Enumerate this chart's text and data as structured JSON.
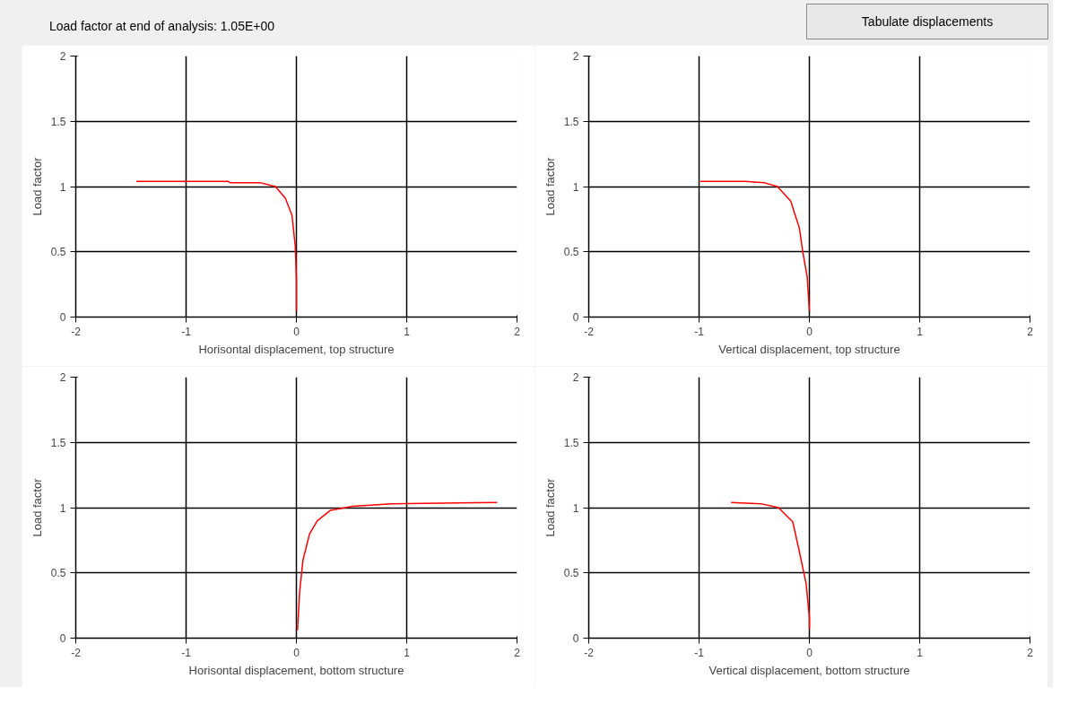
{
  "chart_data": [
    {
      "type": "line",
      "xlabel": "Horisontal displacement, top structure",
      "ylabel": "Load factor",
      "annotations": [
        "Load factor at end of analysis: 1.05E+00",
        "Tabulate displacements"
      ],
      "x": [
        -1.45,
        -0.62,
        -0.6,
        -0.33,
        -0.19,
        -0.1,
        -0.04,
        -0.01,
        0,
        0
      ],
      "series": [
        {
          "color": "#ff0000",
          "values": [
            1.04,
            1.04,
            1.03,
            1.03,
            1.0,
            0.91,
            0.78,
            0.54,
            0.3,
            0.05
          ]
        }
      ],
      "xlim": [
        -2,
        2
      ],
      "ylim": [
        0,
        2
      ],
      "xticks": [
        -2,
        -1,
        0,
        1,
        2
      ],
      "yticks": [
        0,
        0.5,
        1,
        1.5,
        2
      ],
      "grid": true,
      "line_style": "solid"
    },
    {
      "type": "line",
      "xlabel": "Vertical displacement, top structure",
      "ylabel": "Load factor",
      "x": [
        -0.99,
        -0.58,
        -0.41,
        -0.29,
        -0.17,
        -0.09,
        -0.06,
        -0.02,
        0
      ],
      "series": [
        {
          "color": "#ff0000",
          "values": [
            1.04,
            1.04,
            1.03,
            1.0,
            0.89,
            0.68,
            0.5,
            0.31,
            0.05
          ]
        }
      ],
      "xlim": [
        -2,
        2
      ],
      "ylim": [
        0,
        2
      ],
      "xticks": [
        -2,
        -1,
        0,
        1,
        2
      ],
      "yticks": [
        0,
        0.5,
        1,
        1.5,
        2
      ],
      "grid": true,
      "line_style": "solid"
    },
    {
      "type": "line",
      "xlabel": "Horisontal displacement, bottom structure",
      "ylabel": "Load factor",
      "x": [
        0.01,
        0.03,
        0.06,
        0.12,
        0.19,
        0.31,
        0.51,
        0.86,
        1.82
      ],
      "series": [
        {
          "color": "#ff0000",
          "values": [
            0.06,
            0.36,
            0.6,
            0.8,
            0.9,
            0.98,
            1.01,
            1.03,
            1.04
          ]
        }
      ],
      "xlim": [
        -2,
        2
      ],
      "ylim": [
        0,
        2
      ],
      "xticks": [
        -2,
        -1,
        0,
        1,
        2
      ],
      "yticks": [
        0,
        0.5,
        1,
        1.5,
        2
      ],
      "grid": true,
      "line_style": "solid"
    },
    {
      "type": "line",
      "xlabel": "Vertical displacement, bottom structure",
      "ylabel": "Load factor",
      "x": [
        -0.71,
        -0.44,
        -0.28,
        -0.15,
        -0.09,
        -0.03,
        0,
        0
      ],
      "series": [
        {
          "color": "#ff0000",
          "values": [
            1.04,
            1.03,
            1.0,
            0.89,
            0.66,
            0.42,
            0.16,
            0.07
          ]
        }
      ],
      "xlim": [
        -2,
        2
      ],
      "ylim": [
        0,
        2
      ],
      "xticks": [
        -2,
        -1,
        0,
        1,
        2
      ],
      "yticks": [
        0,
        0.5,
        1,
        1.5,
        2
      ],
      "grid": true,
      "line_style": "solid"
    }
  ]
}
